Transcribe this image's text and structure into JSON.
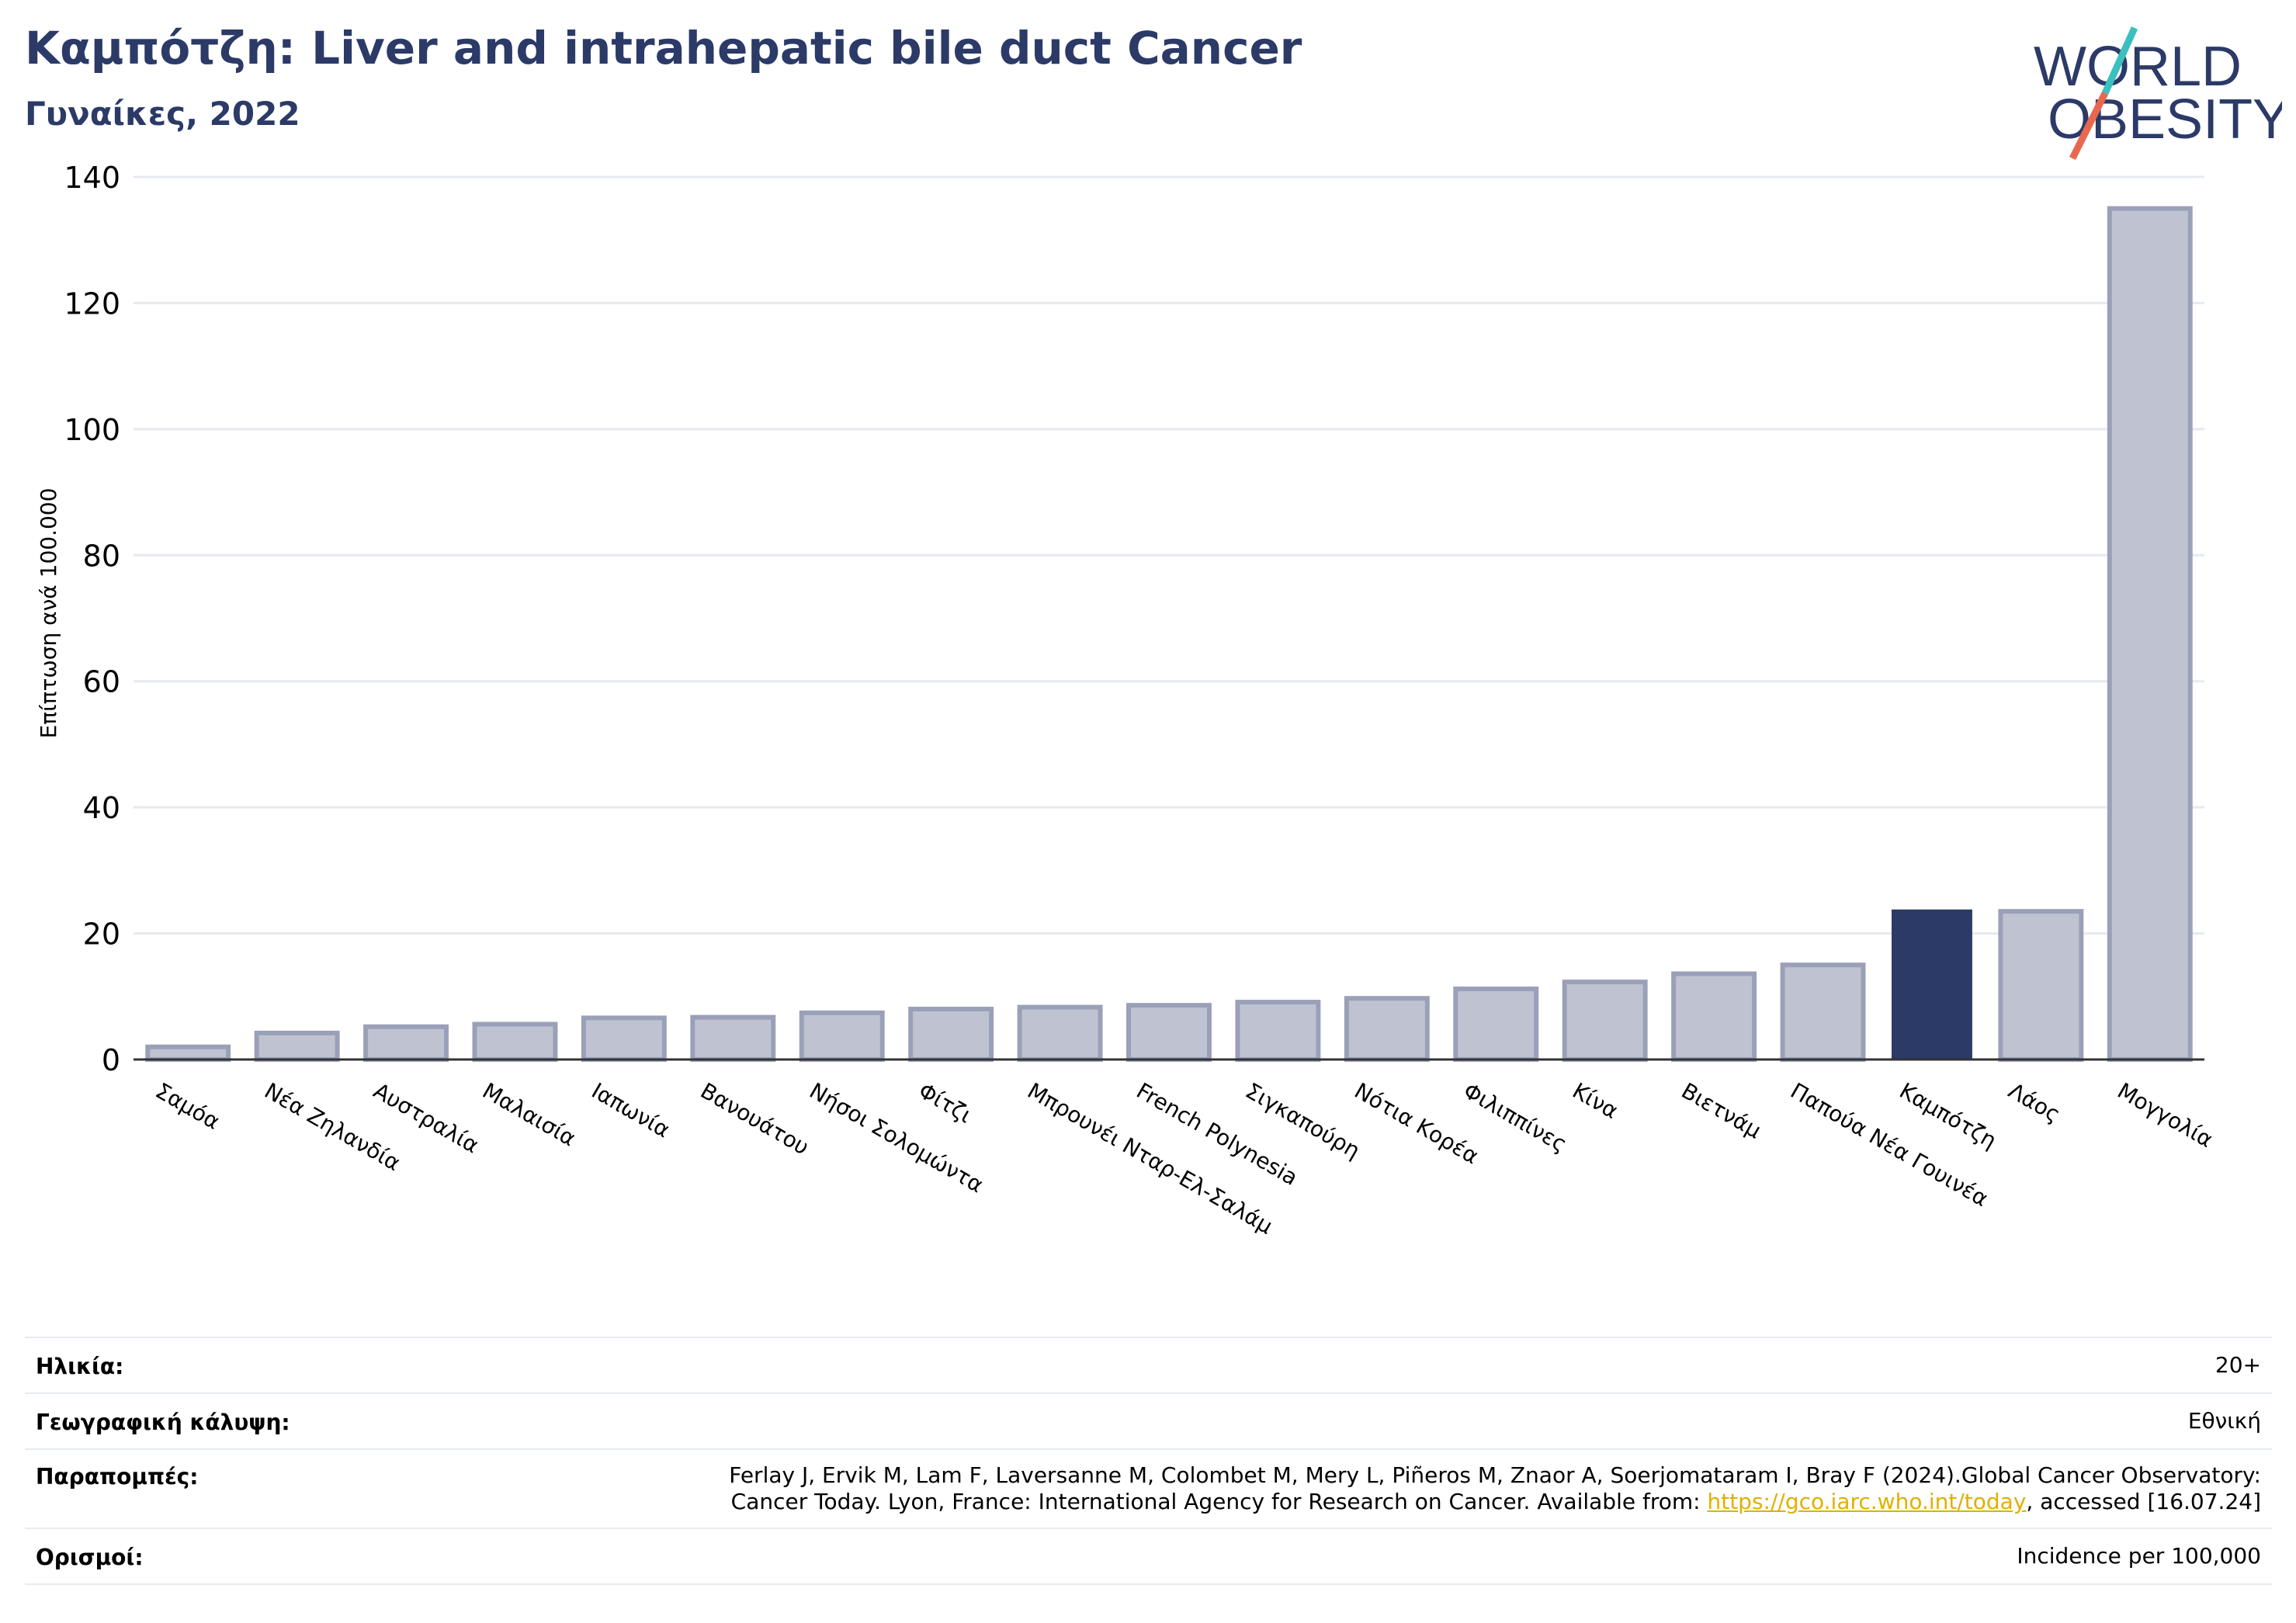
{
  "header": {
    "title": "Καμπότζη: Liver and intrahepatic bile duct Cancer",
    "subtitle": "Γυναίκες, 2022"
  },
  "logo": {
    "line1": "WORLD",
    "line2": "OBESITY",
    "colors": {
      "text": "#2b3a67",
      "slash_top": "#3bbfbf",
      "slash_bottom": "#e8684f"
    }
  },
  "colors": {
    "bar": "#bfc3d1",
    "bar_border": "#9aa0b8",
    "highlight": "#2b3a67",
    "grid": "#e6e9ef",
    "axis": "#333333"
  },
  "chart_data": {
    "type": "bar",
    "categories": [
      "Σαμόα",
      "Νέα Ζηλανδία",
      "Αυστραλία",
      "Μαλαισία",
      "Ιαπωνία",
      "Βανουάτου",
      "Νήσοι Σολομώντα",
      "Φίτζι",
      "Μπρουνέι Νταρ-Ελ-Σαλάμ",
      "French Polynesia",
      "Σιγκαπούρη",
      "Νότια Κορέα",
      "Φιλιππίνες",
      "Κίνα",
      "Βιετνάμ",
      "Παπούα Νέα Γουινέα",
      "Καμπότζη",
      "Λάος",
      "Μογγολία"
    ],
    "values": [
      2.0,
      4.2,
      5.2,
      5.6,
      6.6,
      6.7,
      7.4,
      8.0,
      8.3,
      8.6,
      9.1,
      9.7,
      11.2,
      12.3,
      13.6,
      15.0,
      23.8,
      23.5,
      135.0
    ],
    "highlight": "Καμπότζη",
    "ylabel": "Επίπτωση ανά 100.000",
    "xlabel": "",
    "ylim": [
      0,
      140
    ],
    "yticks": [
      0,
      20,
      40,
      60,
      80,
      100,
      120,
      140
    ],
    "grid": true
  },
  "footer": {
    "age_label": "Ηλικία:",
    "age_value": "20+",
    "coverage_label": "Γεωγραφική κάλυψη:",
    "coverage_value": "Εθνική",
    "refs_label": "Παραπομπές:",
    "refs_line1": "Ferlay J, Ervik M, Lam F, Laversanne M, Colombet M, Mery L, Piñeros M, Znaor A, Soerjomataram I, Bray F (2024).Global Cancer Observatory:",
    "refs_line2_pre": "Cancer Today. Lyon, France: International Agency for Research on Cancer. Available from: ",
    "refs_link": "https://gco.iarc.who.int/today",
    "refs_line2_post": ", accessed [16.07.24]",
    "defs_label": "Ορισμοί:",
    "defs_value": "Incidence per 100,000"
  }
}
